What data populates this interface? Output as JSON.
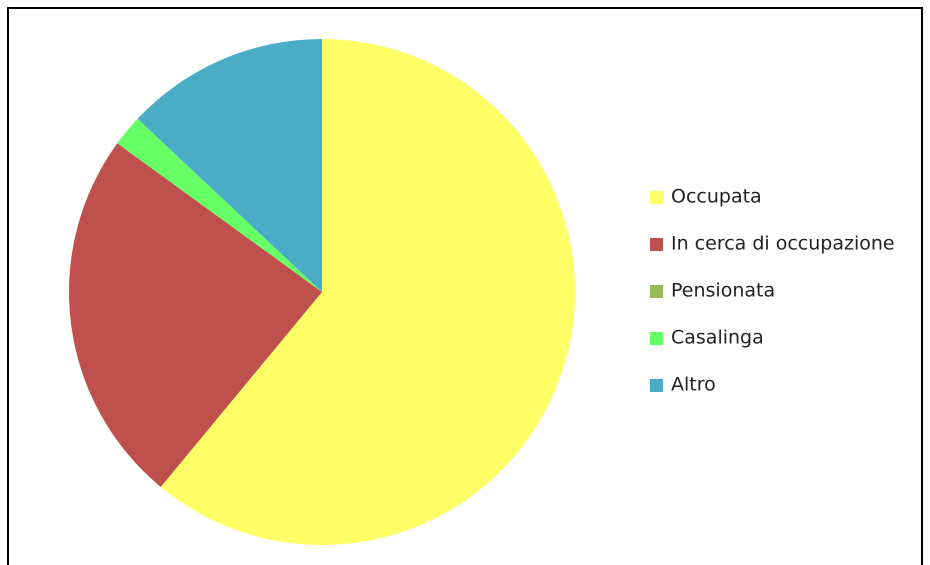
{
  "chart_data": {
    "type": "pie",
    "categories": [
      "Occupata",
      "In cerca di occupazione",
      "Pensionata",
      "Casalinga",
      "Altro"
    ],
    "values": [
      61,
      24,
      0,
      2,
      13
    ],
    "colors": [
      "#ffff66",
      "#c0504d",
      "#9bbb59",
      "#66ff66",
      "#4bacc6"
    ],
    "legend": "right"
  }
}
